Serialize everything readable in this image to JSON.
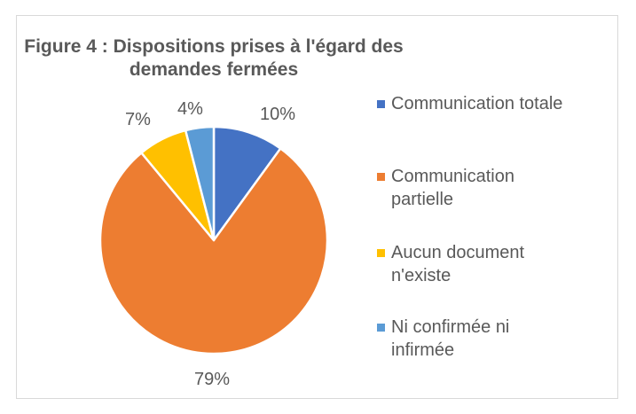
{
  "chart": {
    "title": "Figure 4 : Dispositions prises à l'égard des demandes fermées",
    "title_line1": "Figure 4 : Dispositions prises à l'égard des",
    "title_line2": "demandes fermées"
  },
  "legend": {
    "items": [
      {
        "label": "Communication totale",
        "color": "#4472C4"
      },
      {
        "label": "Communication partielle",
        "line1": "Communication",
        "line2": "partielle",
        "color": "#ED7D31"
      },
      {
        "label": "Aucun document n'existe",
        "line1": "Aucun document",
        "line2": "n'existe",
        "color": "#FFC000"
      },
      {
        "label": "Ni confirmée ni infirmée",
        "line1": "Ni confirmée ni",
        "line2": "infirmée",
        "color": "#5B9BD5"
      }
    ]
  },
  "labels": {
    "communication_totale": "10%",
    "communication_partielle": "79%",
    "aucun_document": "7%",
    "ni_confirmee": "4%"
  },
  "chart_data": {
    "type": "pie",
    "title": "Figure 4 : Dispositions prises à l'égard des demandes fermées",
    "categories": [
      "Communication totale",
      "Communication partielle",
      "Aucun document n'existe",
      "Ni confirmée ni infirmée"
    ],
    "values": [
      10,
      79,
      7,
      4
    ],
    "unit": "%",
    "colors": [
      "#4472C4",
      "#ED7D31",
      "#FFC000",
      "#5B9BD5"
    ],
    "start_angle_deg": 0,
    "direction": "clockwise",
    "legend_position": "right",
    "data_labels": [
      "10%",
      "79%",
      "7%",
      "4%"
    ]
  }
}
